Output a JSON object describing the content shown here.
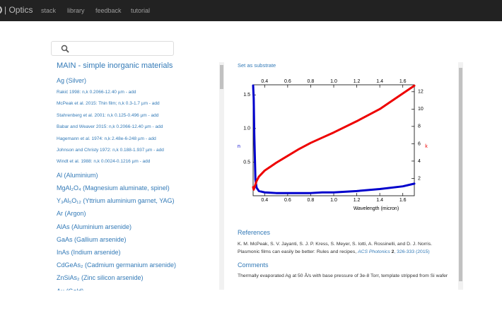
{
  "navbar": {
    "brand": "| Optics",
    "links": [
      "stack",
      "library",
      "feedback",
      "tutorial"
    ]
  },
  "sidebar": {
    "heading": "MAIN - simple inorganic materials",
    "material": "Ag (Silver)",
    "references": [
      "Rakić 1998: n,k 0.2066-12.40 µm - add",
      "McPeak et al. 2015: Thin film; n,k 0.3-1.7 µm - add",
      "Stahrenberg et al. 2001: n,k 0.125-0.496 µm - add",
      "Babar and Weaver 2015: n,k 0.2066-12.40 µm - add",
      "Hagemann et al. 1974: n,k 2.48e-6-248 µm - add",
      "Johnson and Christy 1972: n,k 0.188-1.937 µm - add",
      "Windt et al. 1988: n,k 0.0024-0.1216 µm - add"
    ],
    "materials": [
      "Al (Aluminium)",
      "MgAl₂O₄ (Magnesium aluminate, spinel)",
      "Y₃Al₅O₁₂ (Yttrium aluminium garnet, YAG)",
      "Ar (Argon)",
      "AlAs (Aluminium arsenide)",
      "GaAs (Gallium arsenide)",
      "InAs (Indium arsenide)",
      "CdGeAs₂ (Cadmium germanium arsenide)",
      "ZnSiAs₂ (Zinc silicon arsenide)",
      "Au (Gold)"
    ]
  },
  "main": {
    "action": "Set as substrate",
    "references_heading": "References",
    "reference": {
      "authors": "K. M. McPeak, S. V. Jayanti, S. J. P. Kress, S. Meyer, S. Iotti, A. Rossinelli, and D. J. Norris. Plasmonic films can easily be better: Rules and recipes,",
      "journal": "ACS Photonics",
      "volume": "2",
      "pages": ", 326-333 (2015)"
    },
    "comments_heading": "Comments",
    "comment": "Thermally evaporated Ag at 50 Å/s with base pressure of 3e-8 Torr, template stripped from Si wafer"
  },
  "chart_data": {
    "type": "line",
    "xlabel": "Wavelength (micron)",
    "x": [
      0.3,
      0.305,
      0.31,
      0.32,
      0.33,
      0.35,
      0.4,
      0.5,
      0.6,
      0.7,
      0.8,
      0.9,
      1.0,
      1.2,
      1.4,
      1.6,
      1.7
    ],
    "series": [
      {
        "name": "n",
        "color": "#0000cc",
        "values": [
          1.64,
          1.45,
          0.92,
          0.24,
          0.12,
          0.07,
          0.05,
          0.04,
          0.04,
          0.04,
          0.04,
          0.05,
          0.05,
          0.07,
          0.1,
          0.14,
          0.18
        ]
      },
      {
        "name": "k",
        "color": "#ee0000",
        "axis": "y2",
        "values": [
          1.0,
          0.7,
          0.9,
          1.3,
          1.7,
          2.2,
          2.9,
          3.8,
          4.6,
          5.4,
          6.1,
          6.7,
          7.3,
          8.6,
          10.0,
          11.8,
          12.7
        ]
      }
    ],
    "xlim": [
      0.3,
      1.7
    ],
    "xticks": [
      0.4,
      0.6,
      0.8,
      {
        "value": 1,
        "label": "1.0"
      },
      1.2,
      1.4,
      1.6
    ],
    "ylim": [
      0,
      1.65
    ],
    "yticks": [
      0.5,
      {
        "value": 1,
        "label": "1.0"
      },
      1.5
    ],
    "y2lim": [
      0,
      12.8
    ],
    "y2ticks": [
      2,
      4,
      6,
      8,
      10,
      12
    ]
  }
}
